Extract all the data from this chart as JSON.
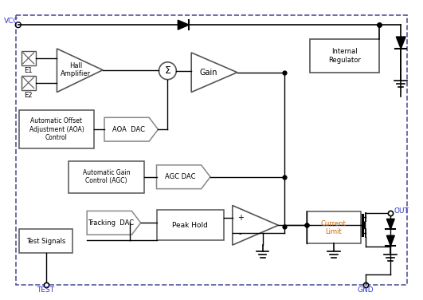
{
  "bg_color": "#ffffff",
  "border_color": "#555599",
  "text_color": "#000000",
  "blue_label_color": "#3333cc",
  "box_edge_color": "#555555",
  "dac_edge_color": "#888888",
  "orange_color": "#cc6600",
  "fig_width": 5.31,
  "fig_height": 3.76,
  "labels": {
    "vcc": "VCC",
    "test": "TEST",
    "gnd": "GND",
    "out": "OUT",
    "e1": "E1",
    "e2": "E2",
    "hall": "Hall\nAmplifier",
    "sum": "Σ",
    "gain": "Gain",
    "internal_reg": "Internal\nRegulator",
    "aoa_control": "Automatic Offset\nAdjustment (AOA)\nControl",
    "aoa_dac": "AOA  DAC",
    "agc_control": "Automatic Gain\nControl (AGC)",
    "agc_dac": "AGC DAC",
    "tracking_dac": "Tracking  DAC",
    "peak_hold": "Peak Hold",
    "current_limit": "Current\nLimit",
    "test_signals": "Test Signals"
  }
}
